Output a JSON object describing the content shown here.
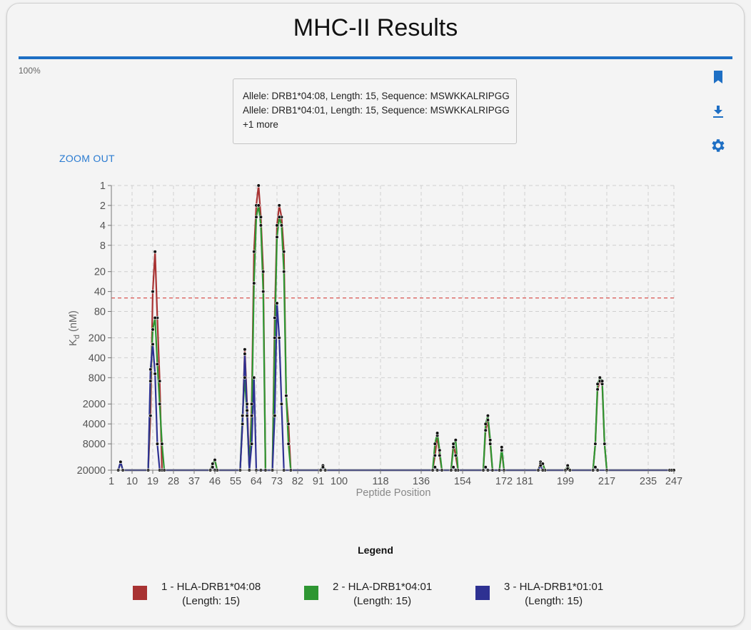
{
  "page": {
    "title": "MHC-II Results",
    "progress_percent": 100,
    "progress_label": "100%",
    "zoom_out_label": "ZOOM OUT",
    "icons": [
      "bookmark-icon",
      "download-icon",
      "gear-icon"
    ]
  },
  "tooltip": {
    "lines": [
      "Allele: DRB1*04:08, Length: 15, Sequence: MSWKKALRIPGG",
      "Allele: DRB1*04:01, Length: 15, Sequence: MSWKKALRIPGG"
    ],
    "more": "+1 more"
  },
  "legend": {
    "title": "Legend",
    "items": [
      {
        "name": "1 - HLA-DRB1*04:08",
        "sub": "(Length: 15)",
        "color": "#a83232"
      },
      {
        "name": "2 - HLA-DRB1*04:01",
        "sub": "(Length: 15)",
        "color": "#2e9632"
      },
      {
        "name": "3 - HLA-DRB1*01:01",
        "sub": "(Length: 15)",
        "color": "#2e3192"
      }
    ]
  },
  "chart_data": {
    "type": "line",
    "xlabel": "Peptide Position",
    "ylabel": "K",
    "ylabel_sub": "d",
    "ylabel_unit": " (nM)",
    "x_ticks": [
      1,
      10,
      19,
      28,
      37,
      46,
      55,
      64,
      73,
      82,
      91,
      100,
      118,
      136,
      154,
      172,
      181,
      199,
      217,
      235,
      247
    ],
    "y_ticks": [
      1,
      2,
      4,
      8,
      20,
      40,
      80,
      200,
      400,
      800,
      2000,
      4000,
      8000,
      20000
    ],
    "ylim": [
      1,
      20000
    ],
    "y_scale": "log",
    "y_inverted": true,
    "threshold": 50,
    "threshold_color": "#d9534f",
    "grid": true,
    "series": [
      {
        "name": "1 - HLA-DRB1*04:08",
        "color": "#a83232",
        "points": [
          [
            4,
            20000
          ],
          [
            5,
            15000
          ],
          [
            6,
            20000
          ],
          [
            17,
            20000
          ],
          [
            18,
            3000
          ],
          [
            19,
            40
          ],
          [
            20,
            10
          ],
          [
            21,
            100
          ],
          [
            22,
            900
          ],
          [
            23,
            20000
          ],
          [
            44,
            20000
          ],
          [
            45,
            16000
          ],
          [
            46,
            14000
          ],
          [
            47,
            20000
          ],
          [
            57,
            20000
          ],
          [
            58,
            4000
          ],
          [
            59,
            300
          ],
          [
            60,
            2000
          ],
          [
            61,
            20000
          ],
          [
            62,
            2000
          ],
          [
            63,
            10
          ],
          [
            64,
            2
          ],
          [
            65,
            1
          ],
          [
            66,
            3
          ],
          [
            67,
            20
          ],
          [
            68,
            20000
          ],
          [
            71,
            20000
          ],
          [
            72,
            100
          ],
          [
            73,
            4
          ],
          [
            74,
            2
          ],
          [
            75,
            3
          ],
          [
            76,
            10
          ],
          [
            77,
            1500
          ],
          [
            78,
            4000
          ],
          [
            79,
            20000
          ],
          [
            92,
            20000
          ],
          [
            93,
            17000
          ],
          [
            94,
            20000
          ],
          [
            141,
            20000
          ],
          [
            142,
            12000
          ],
          [
            143,
            6000
          ],
          [
            144,
            12000
          ],
          [
            145,
            20000
          ],
          [
            149,
            20000
          ],
          [
            150,
            8000
          ],
          [
            151,
            12000
          ],
          [
            152,
            20000
          ],
          [
            163,
            20000
          ],
          [
            164,
            5000
          ],
          [
            165,
            3500
          ],
          [
            166,
            8000
          ],
          [
            167,
            20000
          ],
          [
            170,
            20000
          ],
          [
            171,
            10000
          ],
          [
            172,
            20000
          ],
          [
            187,
            20000
          ],
          [
            188,
            15000
          ],
          [
            189,
            16000
          ],
          [
            190,
            20000
          ],
          [
            199,
            20000
          ],
          [
            200,
            17000
          ],
          [
            201,
            20000
          ],
          [
            211,
            20000
          ],
          [
            212,
            8000
          ],
          [
            213,
            1200
          ],
          [
            214,
            900
          ],
          [
            215,
            1000
          ],
          [
            216,
            8000
          ],
          [
            217,
            20000
          ],
          [
            245,
            20000
          ],
          [
            246,
            20000
          ],
          [
            247,
            20000
          ]
        ]
      },
      {
        "name": "2 - HLA-DRB1*04:01",
        "color": "#2e9632",
        "points": [
          [
            4,
            20000
          ],
          [
            5,
            15000
          ],
          [
            6,
            20000
          ],
          [
            17,
            20000
          ],
          [
            18,
            900
          ],
          [
            19,
            150
          ],
          [
            20,
            100
          ],
          [
            21,
            500
          ],
          [
            22,
            2000
          ],
          [
            23,
            8000
          ],
          [
            24,
            20000
          ],
          [
            44,
            20000
          ],
          [
            45,
            16000
          ],
          [
            46,
            14000
          ],
          [
            47,
            20000
          ],
          [
            57,
            20000
          ],
          [
            58,
            3000
          ],
          [
            59,
            800
          ],
          [
            60,
            3000
          ],
          [
            61,
            20000
          ],
          [
            62,
            3000
          ],
          [
            63,
            30
          ],
          [
            64,
            3
          ],
          [
            65,
            2
          ],
          [
            66,
            4
          ],
          [
            67,
            40
          ],
          [
            68,
            20000
          ],
          [
            71,
            20000
          ],
          [
            72,
            200
          ],
          [
            73,
            6
          ],
          [
            74,
            3
          ],
          [
            75,
            4
          ],
          [
            76,
            20
          ],
          [
            77,
            1500
          ],
          [
            78,
            8000
          ],
          [
            79,
            20000
          ],
          [
            92,
            20000
          ],
          [
            93,
            17000
          ],
          [
            94,
            20000
          ],
          [
            141,
            20000
          ],
          [
            142,
            8000
          ],
          [
            143,
            5500
          ],
          [
            144,
            10000
          ],
          [
            145,
            20000
          ],
          [
            149,
            20000
          ],
          [
            150,
            9000
          ],
          [
            151,
            7000
          ],
          [
            152,
            20000
          ],
          [
            163,
            20000
          ],
          [
            164,
            4000
          ],
          [
            165,
            3000
          ],
          [
            166,
            7000
          ],
          [
            167,
            20000
          ],
          [
            170,
            20000
          ],
          [
            171,
            9000
          ],
          [
            172,
            20000
          ],
          [
            187,
            20000
          ],
          [
            188,
            16000
          ],
          [
            189,
            16000
          ],
          [
            190,
            20000
          ],
          [
            199,
            20000
          ],
          [
            200,
            17000
          ],
          [
            201,
            20000
          ],
          [
            211,
            20000
          ],
          [
            212,
            8000
          ],
          [
            213,
            1000
          ],
          [
            214,
            800
          ],
          [
            215,
            900
          ],
          [
            216,
            8000
          ],
          [
            217,
            20000
          ],
          [
            245,
            20000
          ],
          [
            246,
            20000
          ],
          [
            247,
            20000
          ]
        ]
      },
      {
        "name": "3 - HLA-DRB1*01:01",
        "color": "#2e3192",
        "points": [
          [
            4,
            20000
          ],
          [
            5,
            15000
          ],
          [
            6,
            20000
          ],
          [
            17,
            20000
          ],
          [
            18,
            600
          ],
          [
            19,
            250
          ],
          [
            20,
            700
          ],
          [
            21,
            8000
          ],
          [
            22,
            20000
          ],
          [
            44,
            20000
          ],
          [
            45,
            18000
          ],
          [
            46,
            20000
          ],
          [
            57,
            20000
          ],
          [
            58,
            4000
          ],
          [
            59,
            350
          ],
          [
            60,
            2500
          ],
          [
            61,
            20000
          ],
          [
            62,
            8000
          ],
          [
            63,
            800
          ],
          [
            64,
            20000
          ],
          [
            66,
            20000
          ],
          [
            71,
            20000
          ],
          [
            72,
            3000
          ],
          [
            73,
            60
          ],
          [
            74,
            200
          ],
          [
            75,
            2000
          ],
          [
            76,
            20000
          ],
          [
            92,
            20000
          ],
          [
            93,
            18000
          ],
          [
            94,
            20000
          ],
          [
            141,
            20000
          ],
          [
            142,
            18000
          ],
          [
            143,
            20000
          ],
          [
            149,
            20000
          ],
          [
            150,
            18000
          ],
          [
            151,
            20000
          ],
          [
            163,
            20000
          ],
          [
            164,
            18000
          ],
          [
            165,
            20000
          ],
          [
            187,
            20000
          ],
          [
            188,
            17000
          ],
          [
            189,
            20000
          ],
          [
            199,
            20000
          ],
          [
            200,
            19000
          ],
          [
            201,
            20000
          ],
          [
            211,
            20000
          ],
          [
            212,
            18000
          ],
          [
            213,
            20000
          ],
          [
            245,
            20000
          ],
          [
            246,
            20000
          ],
          [
            247,
            20000
          ]
        ]
      }
    ]
  }
}
